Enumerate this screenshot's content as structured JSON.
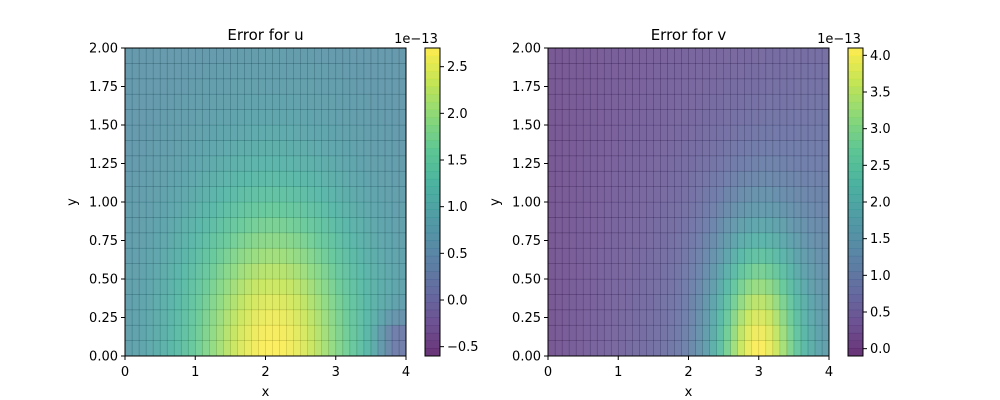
{
  "chart_data": [
    {
      "type": "heatmap",
      "title": "Error for u",
      "xlabel": "x",
      "ylabel": "y",
      "xlim": [
        0,
        4
      ],
      "ylim": [
        0,
        2
      ],
      "xticks": [
        "0",
        "1",
        "2",
        "3",
        "4"
      ],
      "yticks": [
        "0.00",
        "0.25",
        "0.50",
        "0.75",
        "1.00",
        "1.25",
        "1.50",
        "1.75",
        "2.00"
      ],
      "grid": true,
      "colormap": "viridis",
      "colorbar": {
        "min": -0.6,
        "max": 2.7,
        "ticks": [
          "−0.5",
          "0.0",
          "0.5",
          "1.0",
          "1.5",
          "2.0",
          "2.5"
        ],
        "tick_values": [
          -0.5,
          0.0,
          0.5,
          1.0,
          1.5,
          2.0,
          2.5
        ],
        "offset_label": "1e−13"
      },
      "field_peak": {
        "x": 2.1,
        "y": 0.0,
        "value": 2.7
      },
      "field_background": 0.65,
      "field_corner_low": {
        "x": 3.9,
        "y": 0.1,
        "value": 0.1
      }
    },
    {
      "type": "heatmap",
      "title": "Error for v",
      "xlabel": "x",
      "ylabel": "y",
      "xlim": [
        0,
        4
      ],
      "ylim": [
        0,
        2
      ],
      "xticks": [
        "0",
        "1",
        "2",
        "3",
        "4"
      ],
      "yticks": [
        "0.00",
        "0.25",
        "0.50",
        "0.75",
        "1.00",
        "1.25",
        "1.50",
        "1.75",
        "2.00"
      ],
      "grid": true,
      "colormap": "viridis",
      "colorbar": {
        "min": -0.1,
        "max": 4.1,
        "ticks": [
          "0.0",
          "0.5",
          "1.0",
          "1.5",
          "2.0",
          "2.5",
          "3.0",
          "3.5",
          "4.0"
        ],
        "tick_values": [
          0.0,
          0.5,
          1.0,
          1.5,
          2.0,
          2.5,
          3.0,
          3.5,
          4.0
        ],
        "offset_label": "1e−13"
      },
      "field_peak": {
        "x": 3.0,
        "y": 0.0,
        "value": 4.1
      },
      "field_background": 0.2
    }
  ]
}
